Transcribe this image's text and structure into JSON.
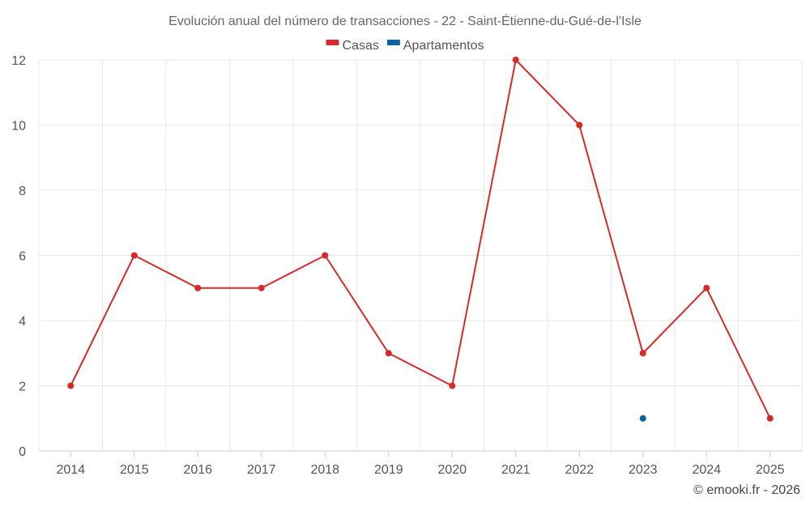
{
  "chart_data": {
    "type": "line",
    "title": "Evolución anual del número de transacciones - 22 - Saint-Étienne-du-Gué-de-l'Isle",
    "xlabel": "",
    "ylabel": "",
    "categories": [
      "2014",
      "2015",
      "2016",
      "2017",
      "2018",
      "2019",
      "2020",
      "2021",
      "2022",
      "2023",
      "2024",
      "2025"
    ],
    "ylim": [
      0,
      12
    ],
    "yticks": [
      "0",
      "2",
      "4",
      "6",
      "8",
      "10",
      "12"
    ],
    "grid": true,
    "legend_position": "top",
    "series": [
      {
        "name": "Casas",
        "color": "#d42b2b",
        "values": [
          2,
          6,
          5,
          5,
          6,
          3,
          2,
          12,
          10,
          3,
          5,
          1
        ]
      },
      {
        "name": "Apartamentos",
        "color": "#0b62a4",
        "values": [
          null,
          null,
          null,
          null,
          null,
          null,
          null,
          null,
          null,
          1,
          null,
          null
        ]
      }
    ]
  },
  "credit": "© emooki.fr - 2026"
}
